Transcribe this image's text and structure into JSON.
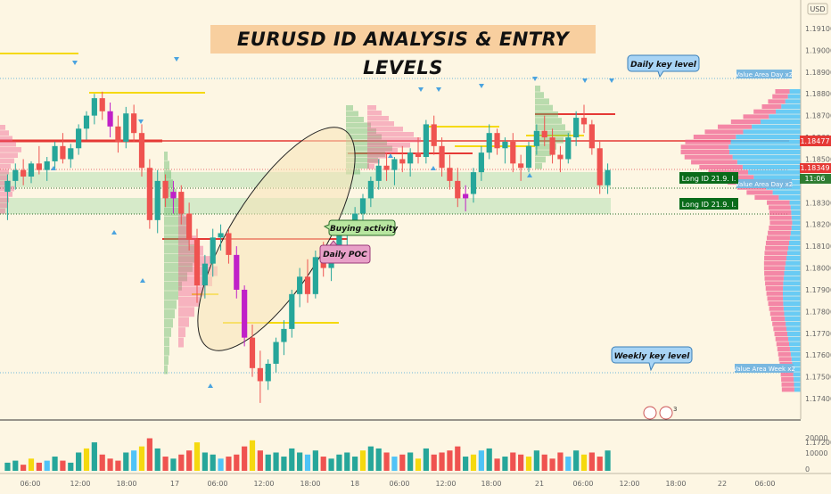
{
  "title": "EURUSD ID ANALYSIS & ENTRY LEVELS",
  "currency": "USD",
  "price_labels": {
    "current": "1.18477",
    "secondary": "1.18349",
    "timer": "11:06"
  },
  "annotations": {
    "daily_key_level": "Daily key level",
    "weekly_key_level": "Weekly key level",
    "buying_activity": "Buying activity",
    "daily_poc": "Daily POC",
    "value_area_day": "Value Area Day x2",
    "value_area_week": "Value Area Week x2",
    "long_1": "Long ID   21.9. I.",
    "long_2": "Long ID   21.9. I.",
    "vol_badge": "3"
  },
  "colors": {
    "bull": "#26a69a",
    "bear": "#ef5350",
    "highlight": "#c020c8",
    "poc_line": "#e53935",
    "yellow_line": "#f5d90f",
    "green_zone": "#c8e6c0",
    "blue_callout": "#a8d4f5",
    "pink_callout": "#e8a0c8",
    "green_callout": "#b8e6a0",
    "long_label": "#0a6b1a",
    "volume_profile_blue": "#4fc3f7",
    "volume_profile_red": "#f06292"
  },
  "chart_data": {
    "type": "candlestick",
    "symbol": "EURUSD",
    "y_ticks": [
      "1.19100",
      "1.19000",
      "1.18900",
      "1.18800",
      "1.18700",
      "1.18600",
      "1.18500",
      "1.18400",
      "1.18300",
      "1.18200",
      "1.18100",
      "1.18000",
      "1.17900",
      "1.17800",
      "1.17700",
      "1.17600",
      "1.17500",
      "1.17400",
      "1.17200"
    ],
    "x_ticks": [
      "06:00",
      "12:00",
      "18:00",
      "17",
      "06:00",
      "12:00",
      "18:00",
      "18",
      "06:00",
      "12:00",
      "18:00",
      "21",
      "06:00",
      "12:00",
      "18:00",
      "22",
      "06:00"
    ],
    "volume_ticks": [
      "20000",
      "10000",
      "0"
    ],
    "ylim": [
      1.1712,
      1.1918
    ],
    "key_levels": {
      "current_price": 1.18477,
      "secondary_price": 1.18349,
      "value_area_day_high": 1.1876,
      "value_area_day_low": 1.1824,
      "value_area_week_low": 1.1742,
      "daily_poc": 1.1802
    },
    "candles_ohlc": [
      [
        1.1835,
        1.1843,
        1.1822,
        1.184
      ],
      [
        1.184,
        1.1848,
        1.1836,
        1.1845
      ],
      [
        1.1845,
        1.185,
        1.1838,
        1.1842
      ],
      [
        1.1842,
        1.1849,
        1.1839,
        1.1848
      ],
      [
        1.1848,
        1.1856,
        1.1843,
        1.1845
      ],
      [
        1.1845,
        1.1851,
        1.184,
        1.1849
      ],
      [
        1.1849,
        1.1858,
        1.1845,
        1.1856
      ],
      [
        1.1856,
        1.1862,
        1.1848,
        1.185
      ],
      [
        1.185,
        1.1857,
        1.1846,
        1.1855
      ],
      [
        1.1855,
        1.1866,
        1.1852,
        1.1864
      ],
      [
        1.1864,
        1.1872,
        1.1859,
        1.187
      ],
      [
        1.187,
        1.188,
        1.1866,
        1.1878
      ],
      [
        1.1878,
        1.1881,
        1.1868,
        1.1872
      ],
      [
        1.1872,
        1.1876,
        1.186,
        1.1865
      ],
      [
        1.1865,
        1.187,
        1.1853,
        1.1858
      ],
      [
        1.1858,
        1.1874,
        1.1855,
        1.1871
      ],
      [
        1.1871,
        1.1875,
        1.1858,
        1.1862
      ],
      [
        1.1862,
        1.1866,
        1.1842,
        1.1846
      ],
      [
        1.1846,
        1.185,
        1.1818,
        1.1822
      ],
      [
        1.1822,
        1.1845,
        1.1816,
        1.184
      ],
      [
        1.184,
        1.1843,
        1.1828,
        1.1832
      ],
      [
        1.1832,
        1.184,
        1.1825,
        1.1835
      ],
      [
        1.1835,
        1.1838,
        1.182,
        1.1825
      ],
      [
        1.1825,
        1.183,
        1.1808,
        1.1813
      ],
      [
        1.1813,
        1.1818,
        1.1784,
        1.1792
      ],
      [
        1.1792,
        1.1806,
        1.1786,
        1.1802
      ],
      [
        1.1802,
        1.1818,
        1.1796,
        1.1814
      ],
      [
        1.1814,
        1.182,
        1.1808,
        1.1816
      ],
      [
        1.1816,
        1.1818,
        1.1802,
        1.1806
      ],
      [
        1.1806,
        1.181,
        1.1786,
        1.179
      ],
      [
        1.179,
        1.1792,
        1.1764,
        1.1768
      ],
      [
        1.1768,
        1.1774,
        1.175,
        1.1754
      ],
      [
        1.1754,
        1.1762,
        1.1738,
        1.1748
      ],
      [
        1.1748,
        1.1758,
        1.1744,
        1.1756
      ],
      [
        1.1756,
        1.1768,
        1.1752,
        1.1766
      ],
      [
        1.1766,
        1.1776,
        1.176,
        1.1772
      ],
      [
        1.1772,
        1.179,
        1.1768,
        1.1788
      ],
      [
        1.1788,
        1.18,
        1.1782,
        1.1796
      ],
      [
        1.1796,
        1.1804,
        1.1784,
        1.1788
      ],
      [
        1.1788,
        1.1808,
        1.1786,
        1.1805
      ],
      [
        1.1805,
        1.1812,
        1.1796,
        1.18
      ],
      [
        1.18,
        1.181,
        1.1794,
        1.1807
      ],
      [
        1.1807,
        1.1818,
        1.1803,
        1.1815
      ],
      [
        1.1815,
        1.1822,
        1.181,
        1.1819
      ],
      [
        1.1819,
        1.1828,
        1.1816,
        1.1825
      ],
      [
        1.1825,
        1.1834,
        1.1821,
        1.1832
      ],
      [
        1.1832,
        1.1842,
        1.1828,
        1.184
      ],
      [
        1.184,
        1.185,
        1.1836,
        1.1847
      ],
      [
        1.1847,
        1.1853,
        1.184,
        1.1845
      ],
      [
        1.1845,
        1.1851,
        1.1838,
        1.185
      ],
      [
        1.185,
        1.1856,
        1.1844,
        1.1848
      ],
      [
        1.1848,
        1.1855,
        1.1842,
        1.1853
      ],
      [
        1.1853,
        1.186,
        1.1848,
        1.1851
      ],
      [
        1.1851,
        1.1868,
        1.1848,
        1.1866
      ],
      [
        1.1866,
        1.187,
        1.1852,
        1.1856
      ],
      [
        1.1856,
        1.186,
        1.1842,
        1.1846
      ],
      [
        1.1846,
        1.1852,
        1.1836,
        1.184
      ],
      [
        1.184,
        1.1846,
        1.1828,
        1.1832
      ],
      [
        1.1832,
        1.1838,
        1.1826,
        1.1834
      ],
      [
        1.1834,
        1.1846,
        1.183,
        1.1844
      ],
      [
        1.1844,
        1.1856,
        1.184,
        1.1853
      ],
      [
        1.1853,
        1.1866,
        1.185,
        1.1862
      ],
      [
        1.1862,
        1.1864,
        1.1852,
        1.1855
      ],
      [
        1.1855,
        1.186,
        1.1848,
        1.1858
      ],
      [
        1.1858,
        1.1862,
        1.1844,
        1.1848
      ],
      [
        1.1848,
        1.1852,
        1.184,
        1.1846
      ],
      [
        1.1846,
        1.1858,
        1.1844,
        1.1856
      ],
      [
        1.1856,
        1.1866,
        1.1852,
        1.1863
      ],
      [
        1.1863,
        1.187,
        1.1856,
        1.186
      ],
      [
        1.186,
        1.1864,
        1.1848,
        1.1852
      ],
      [
        1.1852,
        1.1856,
        1.1844,
        1.185
      ],
      [
        1.185,
        1.1862,
        1.1848,
        1.186
      ],
      [
        1.186,
        1.1872,
        1.1856,
        1.1869
      ],
      [
        1.1869,
        1.1875,
        1.1862,
        1.1866
      ],
      [
        1.1866,
        1.1868,
        1.1852,
        1.1855
      ],
      [
        1.1855,
        1.1858,
        1.1834,
        1.1838
      ],
      [
        1.1838,
        1.1848,
        1.1834,
        1.1845
      ]
    ],
    "volume": [
      4,
      5,
      3,
      6,
      4,
      5,
      7,
      5,
      4,
      9,
      11,
      14,
      8,
      6,
      5,
      9,
      10,
      12,
      16,
      11,
      7,
      6,
      8,
      10,
      14,
      9,
      8,
      6,
      7,
      8,
      12,
      15,
      10,
      8,
      9,
      7,
      11,
      9,
      8,
      10,
      7,
      6,
      8,
      9,
      7,
      10,
      12,
      11,
      9,
      7,
      8,
      9,
      6,
      11,
      8,
      9,
      10,
      12,
      7,
      8,
      10,
      11,
      6,
      7,
      9,
      8,
      7,
      10,
      8,
      6,
      9,
      7,
      10,
      8,
      9,
      7,
      10
    ]
  }
}
